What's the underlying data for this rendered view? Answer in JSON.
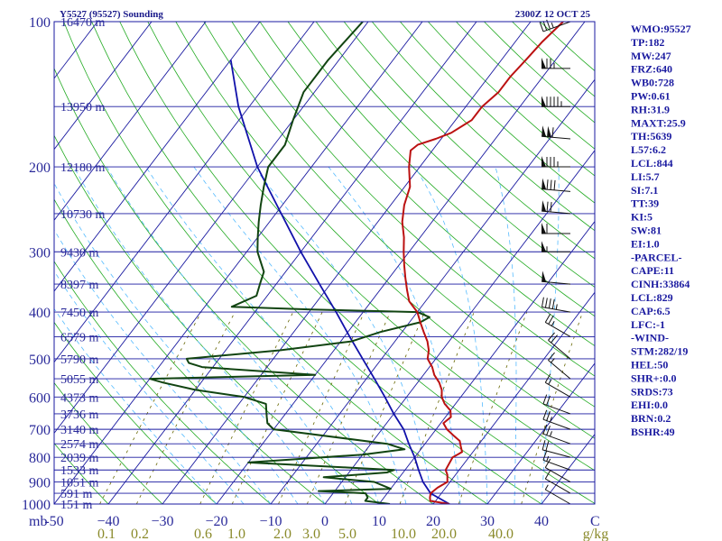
{
  "chart_data": {
    "type": "skew-t",
    "title_left": "Y5527 (95527) Sounding",
    "title_right": "2300Z 12 OCT 25",
    "pressure_ticks": [
      100,
      200,
      300,
      400,
      500,
      600,
      700,
      800,
      900,
      1000
    ],
    "height_labels": [
      {
        "p": 100,
        "text": "16470 m"
      },
      {
        "p": 150,
        "text": "13950 m"
      },
      {
        "p": 200,
        "text": "12180 m"
      },
      {
        "p": 250,
        "text": "10730 m"
      },
      {
        "p": 300,
        "text": "9430 m"
      },
      {
        "p": 350,
        "text": "8397 m"
      },
      {
        "p": 400,
        "text": "7450 m"
      },
      {
        "p": 450,
        "text": "6579 m"
      },
      {
        "p": 500,
        "text": "5790 m"
      },
      {
        "p": 550,
        "text": "5055 m"
      },
      {
        "p": 600,
        "text": "4373 m"
      },
      {
        "p": 650,
        "text": "3736 m"
      },
      {
        "p": 700,
        "text": "3140 m"
      },
      {
        "p": 750,
        "text": "2574 m"
      },
      {
        "p": 800,
        "text": "2039 m"
      },
      {
        "p": 850,
        "text": "1533 m"
      },
      {
        "p": 900,
        "text": "1051 m"
      },
      {
        "p": 950,
        "text": "591 m"
      },
      {
        "p": 1000,
        "text": "151 m"
      }
    ],
    "temperature_ticks": [
      {
        "t": -50,
        "text": "-50"
      },
      {
        "t": -40,
        "text": "−40"
      },
      {
        "t": -30,
        "text": "−30"
      },
      {
        "t": -20,
        "text": "−20"
      },
      {
        "t": -10,
        "text": "−10"
      },
      {
        "t": 0,
        "text": "0"
      },
      {
        "t": 10,
        "text": "10"
      },
      {
        "t": 20,
        "text": "20"
      },
      {
        "t": 30,
        "text": "30"
      },
      {
        "t": 40,
        "text": "40"
      }
    ],
    "mb_label": "mb",
    "degc_label": "C",
    "mixing_ratio_labels": [
      "0.1",
      "0.2",
      "0.6",
      "1.0",
      "2.0",
      "3.0",
      "5.0",
      "10.0",
      "20.0",
      "40.0",
      "g/kg"
    ],
    "xlim": [
      -50,
      50
    ],
    "plim": [
      100,
      1000
    ],
    "temperature": [
      [
        1000,
        23
      ],
      [
        985,
        19
      ],
      [
        970,
        18.5
      ],
      [
        950,
        18
      ],
      [
        925,
        18.5
      ],
      [
        900,
        19.5
      ],
      [
        870,
        18.5
      ],
      [
        850,
        17.5
      ],
      [
        800,
        17
      ],
      [
        780,
        18
      ],
      [
        760,
        17
      ],
      [
        740,
        16
      ],
      [
        720,
        14
      ],
      [
        700,
        12
      ],
      [
        680,
        10.5
      ],
      [
        660,
        11
      ],
      [
        640,
        10
      ],
      [
        620,
        8
      ],
      [
        600,
        6.5
      ],
      [
        580,
        5.5
      ],
      [
        560,
        4
      ],
      [
        540,
        2
      ],
      [
        520,
        0.5
      ],
      [
        500,
        -1.5
      ],
      [
        480,
        -2.5
      ],
      [
        460,
        -4
      ],
      [
        440,
        -6
      ],
      [
        420,
        -8
      ],
      [
        400,
        -10
      ],
      [
        380,
        -13
      ],
      [
        360,
        -15
      ],
      [
        340,
        -17
      ],
      [
        320,
        -19
      ],
      [
        300,
        -21
      ],
      [
        280,
        -23
      ],
      [
        260,
        -25.5
      ],
      [
        240,
        -27.5
      ],
      [
        220,
        -29
      ],
      [
        200,
        -32
      ],
      [
        185,
        -34
      ],
      [
        180,
        -33.5
      ],
      [
        175,
        -31
      ],
      [
        170,
        -29
      ],
      [
        160,
        -27
      ],
      [
        150,
        -27
      ],
      [
        140,
        -26
      ],
      [
        130,
        -26
      ],
      [
        120,
        -25.5
      ],
      [
        110,
        -25
      ],
      [
        100,
        -24
      ]
    ],
    "dewpoint": [
      [
        1000,
        12
      ],
      [
        985,
        7
      ],
      [
        970,
        7
      ],
      [
        950,
        6
      ],
      [
        940,
        -3
      ],
      [
        930,
        10
      ],
      [
        900,
        6
      ],
      [
        880,
        -4
      ],
      [
        860,
        7
      ],
      [
        850,
        8
      ],
      [
        840,
        -1
      ],
      [
        820,
        -20
      ],
      [
        790,
        0
      ],
      [
        770,
        7
      ],
      [
        750,
        3
      ],
      [
        700,
        -20
      ],
      [
        680,
        -22
      ],
      [
        660,
        -23
      ],
      [
        640,
        -24
      ],
      [
        620,
        -25
      ],
      [
        600,
        -30
      ],
      [
        580,
        -40
      ],
      [
        560,
        -47
      ],
      [
        550,
        -50
      ],
      [
        540,
        -20
      ],
      [
        520,
        -42
      ],
      [
        510,
        -45
      ],
      [
        500,
        -46
      ],
      [
        480,
        -30
      ],
      [
        460,
        -18
      ],
      [
        440,
        -14
      ],
      [
        420,
        -8
      ],
      [
        410,
        -7
      ],
      [
        400,
        -10
      ],
      [
        395,
        -30
      ],
      [
        390,
        -45
      ],
      [
        370,
        -42
      ],
      [
        350,
        -43
      ],
      [
        330,
        -44
      ],
      [
        300,
        -48
      ],
      [
        280,
        -50
      ],
      [
        260,
        -52
      ],
      [
        240,
        -54
      ],
      [
        220,
        -56
      ],
      [
        200,
        -58
      ],
      [
        180,
        -58
      ],
      [
        160,
        -60
      ],
      [
        140,
        -62
      ],
      [
        120,
        -62
      ],
      [
        100,
        -61
      ]
    ],
    "parcel": [
      [
        1000,
        23
      ],
      [
        950,
        18
      ],
      [
        900,
        15
      ],
      [
        850,
        12.5
      ],
      [
        800,
        10
      ],
      [
        750,
        7
      ],
      [
        700,
        4
      ],
      [
        650,
        0
      ],
      [
        600,
        -4
      ],
      [
        550,
        -8.5
      ],
      [
        500,
        -13.5
      ],
      [
        450,
        -19
      ],
      [
        400,
        -25
      ],
      [
        350,
        -32
      ],
      [
        300,
        -40
      ],
      [
        250,
        -49
      ],
      [
        200,
        -60
      ],
      [
        150,
        -72
      ],
      [
        120,
        -80
      ]
    ],
    "wind_barbs": [
      {
        "p": 100,
        "dir": 250,
        "spd": 35
      },
      {
        "p": 125,
        "dir": 270,
        "spd": 75
      },
      {
        "p": 150,
        "dir": 270,
        "spd": 95
      },
      {
        "p": 175,
        "dir": 275,
        "spd": 110
      },
      {
        "p": 200,
        "dir": 270,
        "spd": 85
      },
      {
        "p": 225,
        "dir": 275,
        "spd": 80
      },
      {
        "p": 250,
        "dir": 275,
        "spd": 70
      },
      {
        "p": 275,
        "dir": 270,
        "spd": 60
      },
      {
        "p": 300,
        "dir": 270,
        "spd": 55
      },
      {
        "p": 350,
        "dir": 275,
        "spd": 50
      },
      {
        "p": 400,
        "dir": 280,
        "spd": 45
      },
      {
        "p": 450,
        "dir": 300,
        "spd": 25
      },
      {
        "p": 500,
        "dir": 310,
        "spd": 20
      },
      {
        "p": 550,
        "dir": 310,
        "spd": 15
      },
      {
        "p": 600,
        "dir": 300,
        "spd": 15
      },
      {
        "p": 650,
        "dir": 290,
        "spd": 20
      },
      {
        "p": 700,
        "dir": 290,
        "spd": 25
      },
      {
        "p": 750,
        "dir": 290,
        "spd": 25
      },
      {
        "p": 800,
        "dir": 285,
        "spd": 20
      },
      {
        "p": 850,
        "dir": 290,
        "spd": 15
      },
      {
        "p": 900,
        "dir": 300,
        "spd": 10
      },
      {
        "p": 950,
        "dir": 300,
        "spd": 10
      },
      {
        "p": 1000,
        "dir": 300,
        "spd": 5
      }
    ],
    "colors": {
      "isobar": "#1a1aa0",
      "isotherm": "#1a1aa0",
      "dry_adiabat": "#22aa22",
      "moist_adiabat": "#55bbff",
      "mixing_ratio": "#666600",
      "temperature": "#bb1111",
      "dewpoint": "#114411",
      "parcel": "#1111aa",
      "stats_text": "#1a1aa0",
      "mixing_label": "#8a8a2a"
    }
  },
  "stats": [
    "WMO:95527",
    "TP:182",
    "MW:247",
    "FRZ:640",
    "WB0:728",
    "PW:0.61",
    "RH:31.9",
    "MAXT:25.9",
    "TH:5639",
    "L57:6.2",
    "LCL:844",
    "LI:5.7",
    "SI:7.1",
    "TT:39",
    "KI:5",
    "SW:81",
    "EI:1.0",
    "-PARCEL-",
    "CAPE:11",
    "CINH:33864",
    "LCL:829",
    "CAP:6.5",
    "LFC:-1",
    "-WIND-",
    "STM:282/19",
    "HEL:50",
    "SHR+:0.0",
    "SRDS:73",
    "EHI:0.0",
    "BRN:0.2",
    "BSHR:49"
  ]
}
